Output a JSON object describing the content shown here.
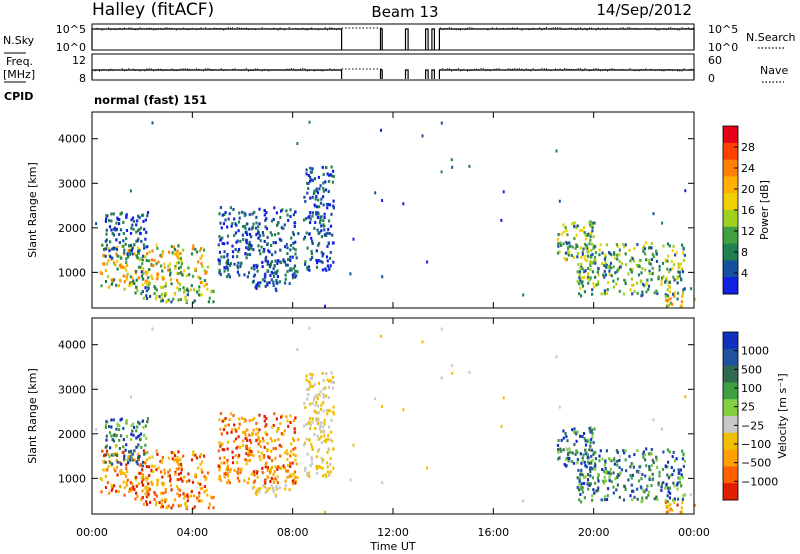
{
  "header": {
    "station": "Halley (fitACF)",
    "beam": "Beam 13",
    "date": "14/Sep/2012"
  },
  "top_panels": {
    "nsky_label": "N.Sky",
    "nsearch_label": "N.Search",
    "nsky_ticks": [
      "10^5",
      "10^0"
    ],
    "nsearch_ticks": [
      "10^5",
      "10^0"
    ],
    "freq_label": "Freq.",
    "freq_unit": "[MHz]",
    "freq_ticks": [
      "12",
      "8"
    ],
    "nave_label": "Nave",
    "nave_ticks": [
      "60",
      "0"
    ],
    "cpid_label": "CPID",
    "cpid_value": "normal (fast) 151",
    "gaps_hours": [
      9.95,
      11.55,
      12.5,
      13.3,
      13.55,
      13.85
    ]
  },
  "chart_data": [
    {
      "type": "heatmap",
      "title": "",
      "xlabel": "",
      "ylabel": "Slant Range [km]",
      "x_ticks": [
        "00:00",
        "04:00",
        "08:00",
        "12:00",
        "16:00",
        "20:00",
        "00:00"
      ],
      "x_range_hours": [
        0,
        24
      ],
      "y_ticks": [
        1000,
        2000,
        3000,
        4000
      ],
      "ylim": [
        200,
        4600
      ],
      "colorbar": {
        "label": "Power [dB]",
        "ticks": [
          "28",
          "24",
          "20",
          "16",
          "12",
          "8",
          "4"
        ],
        "colors_top_to_bottom": [
          "#e6001a",
          "#ff4000",
          "#ff8000",
          "#ffb000",
          "#f0d000",
          "#a0d020",
          "#40a040",
          "#208050",
          "#1850a0",
          "#1020e0"
        ]
      },
      "echo_regions": [
        {
          "t0": 0.3,
          "t1": 4.6,
          "r0": 650,
          "r1": 1650,
          "level": "high"
        },
        {
          "t0": 0.5,
          "t1": 2.2,
          "r0": 1300,
          "r1": 2400,
          "level": "low"
        },
        {
          "t0": 1.5,
          "t1": 4.8,
          "r0": 350,
          "r1": 700,
          "level": "mid"
        },
        {
          "t0": 5.0,
          "t1": 8.2,
          "r0": 900,
          "r1": 2500,
          "level": "low"
        },
        {
          "t0": 6.3,
          "t1": 8.0,
          "r0": 600,
          "r1": 900,
          "level": "low"
        },
        {
          "t0": 8.4,
          "t1": 9.6,
          "r0": 1000,
          "r1": 3400,
          "level": "low"
        },
        {
          "t0": 18.5,
          "t1": 20.0,
          "r0": 1300,
          "r1": 2200,
          "level": "mid"
        },
        {
          "t0": 19.3,
          "t1": 23.6,
          "r0": 500,
          "r1": 1700,
          "level": "mid"
        },
        {
          "t0": 22.8,
          "t1": 24.0,
          "r0": 250,
          "r1": 500,
          "level": "high"
        }
      ]
    },
    {
      "type": "heatmap",
      "title": "",
      "xlabel": "Time UT",
      "ylabel": "Slant Range [km]",
      "x_ticks": [
        "00:00",
        "04:00",
        "08:00",
        "12:00",
        "16:00",
        "20:00",
        "00:00"
      ],
      "x_range_hours": [
        0,
        24
      ],
      "y_ticks": [
        1000,
        2000,
        3000,
        4000
      ],
      "ylim": [
        200,
        4600
      ],
      "colorbar": {
        "label": "Velocity [m s⁻¹]",
        "ticks": [
          "1000",
          "500",
          "100",
          "25",
          "−25",
          "−100",
          "−500",
          "−1000"
        ],
        "colors_top_to_bottom": [
          "#1030c0",
          "#2050a0",
          "#306850",
          "#40a040",
          "#80d040",
          "#c8c8c8",
          "#f0c000",
          "#ffa000",
          "#ff6000",
          "#e02000"
        ]
      },
      "echo_regions": [
        {
          "t0": 0.3,
          "t1": 4.6,
          "r0": 650,
          "r1": 1650,
          "level": "neg"
        },
        {
          "t0": 0.5,
          "t1": 2.2,
          "r0": 1300,
          "r1": 2400,
          "level": "pos"
        },
        {
          "t0": 1.5,
          "t1": 4.8,
          "r0": 350,
          "r1": 700,
          "level": "neg"
        },
        {
          "t0": 5.0,
          "t1": 8.2,
          "r0": 900,
          "r1": 2500,
          "level": "neg"
        },
        {
          "t0": 6.3,
          "t1": 8.0,
          "r0": 600,
          "r1": 900,
          "level": "zero"
        },
        {
          "t0": 8.4,
          "t1": 9.6,
          "r0": 1000,
          "r1": 3400,
          "level": "zero"
        },
        {
          "t0": 18.5,
          "t1": 20.0,
          "r0": 1300,
          "r1": 2200,
          "level": "pos"
        },
        {
          "t0": 19.3,
          "t1": 23.6,
          "r0": 500,
          "r1": 1700,
          "level": "pos"
        },
        {
          "t0": 22.8,
          "t1": 24.0,
          "r0": 250,
          "r1": 500,
          "level": "neg"
        }
      ]
    }
  ]
}
